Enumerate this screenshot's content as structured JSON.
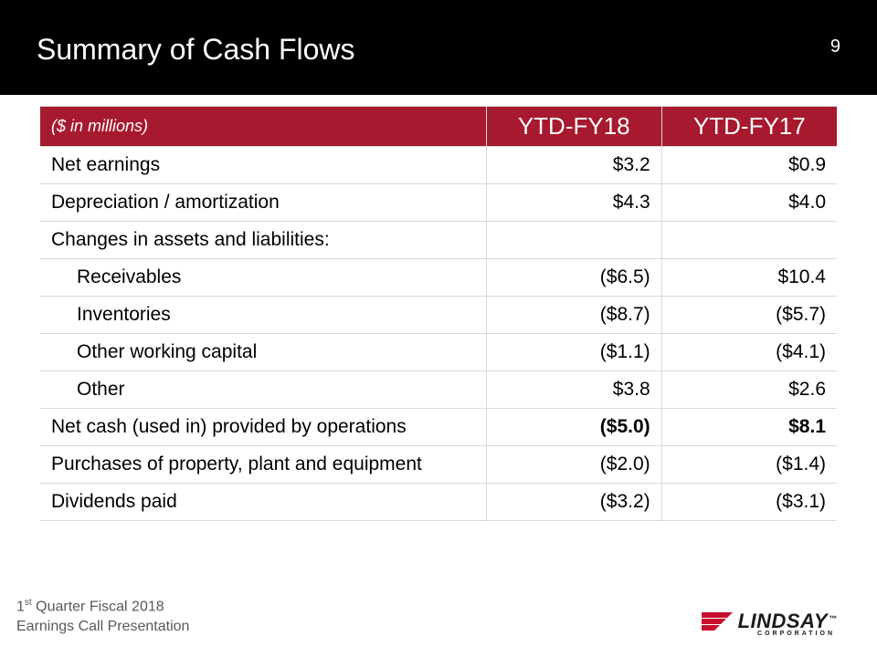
{
  "header": {
    "title": "Summary of Cash Flows",
    "page_number": "9",
    "bg_color": "#000000",
    "text_color": "#ffffff",
    "title_fontsize": 32
  },
  "table": {
    "header_bg": "#a6192e",
    "header_fg": "#ffffff",
    "border_color": "#d9d9d9",
    "cell_fontsize": 21,
    "header_label": "($ in millions)",
    "columns": [
      "YTD-FY18",
      "YTD-FY17"
    ],
    "col_widths_pct": [
      56,
      22,
      22
    ],
    "header_label_fontsize": 18,
    "header_value_fontsize": 26,
    "rows": [
      {
        "label": "Net earnings",
        "indent": false,
        "bold": false,
        "values": [
          "$3.2",
          "$0.9"
        ]
      },
      {
        "label": "Depreciation / amortization",
        "indent": false,
        "bold": false,
        "values": [
          "$4.3",
          "$4.0"
        ]
      },
      {
        "label": "Changes in assets and liabilities:",
        "indent": false,
        "bold": false,
        "values": [
          "",
          ""
        ]
      },
      {
        "label": "Receivables",
        "indent": true,
        "bold": false,
        "values": [
          "($6.5)",
          "$10.4"
        ]
      },
      {
        "label": "Inventories",
        "indent": true,
        "bold": false,
        "values": [
          "($8.7)",
          "($5.7)"
        ]
      },
      {
        "label": "Other working capital",
        "indent": true,
        "bold": false,
        "values": [
          "($1.1)",
          "($4.1)"
        ]
      },
      {
        "label": "Other",
        "indent": true,
        "bold": false,
        "values": [
          "$3.8",
          "$2.6"
        ]
      },
      {
        "label": "Net cash (used in) provided by operations",
        "indent": false,
        "bold": true,
        "values": [
          "($5.0)",
          "$8.1"
        ]
      },
      {
        "label": "Purchases of property, plant and equipment",
        "indent": false,
        "bold": false,
        "values": [
          "($2.0)",
          "($1.4)"
        ]
      },
      {
        "label": "Dividends paid",
        "indent": false,
        "bold": false,
        "values": [
          "($3.2)",
          "($3.1)"
        ]
      }
    ]
  },
  "footer": {
    "line1_prefix": "1",
    "line1_sup": "st",
    "line1_rest": " Quarter Fiscal 2018",
    "line2": "Earnings Call Presentation",
    "text_color": "#595959",
    "fontsize": 16
  },
  "logo": {
    "name": "LINDSAY",
    "tm": "™",
    "sub": "CORPORATION",
    "flag_red": "#c8102e",
    "flag_dark": "#1a1a1a",
    "text_color": "#1a1a1a"
  }
}
